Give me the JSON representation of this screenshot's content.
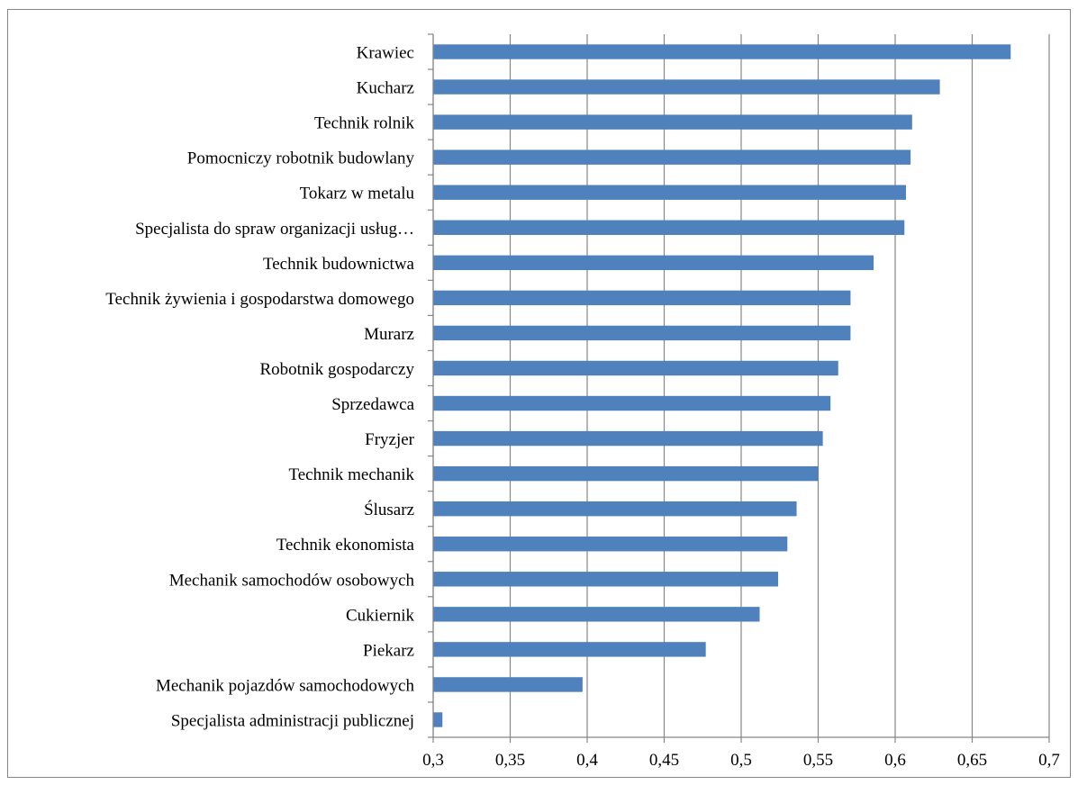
{
  "chart_data": {
    "type": "bar",
    "orientation": "horizontal",
    "categories": [
      "Krawiec",
      "Kucharz",
      "Technik rolnik",
      "Pomocniczy robotnik budowlany",
      "Tokarz w metalu",
      "Specjalista do spraw organizacji usług…",
      "Technik budownictwa",
      "Technik żywienia i gospodarstwa domowego",
      "Murarz",
      "Robotnik gospodarczy",
      "Sprzedawca",
      "Fryzjer",
      "Technik mechanik",
      "Ślusarz",
      "Technik ekonomista",
      "Mechanik samochodów osobowych",
      "Cukiernik",
      "Piekarz",
      "Mechanik pojazdów samochodowych",
      "Specjalista administracji publicznej"
    ],
    "values": [
      0.675,
      0.629,
      0.611,
      0.61,
      0.607,
      0.606,
      0.586,
      0.571,
      0.571,
      0.563,
      0.558,
      0.553,
      0.55,
      0.536,
      0.53,
      0.524,
      0.512,
      0.477,
      0.397,
      0.306
    ],
    "xlim": [
      0.3,
      0.7
    ],
    "x_ticks": [
      "0,3",
      "0,35",
      "0,4",
      "0,45",
      "0,5",
      "0,55",
      "0,6",
      "0,65",
      "0,7"
    ],
    "x_tick_values": [
      0.3,
      0.35,
      0.4,
      0.45,
      0.5,
      0.55,
      0.6,
      0.65,
      0.7
    ],
    "grid": "vertical",
    "bar_color": "#4F81BD",
    "title": "",
    "xlabel": "",
    "ylabel": ""
  }
}
